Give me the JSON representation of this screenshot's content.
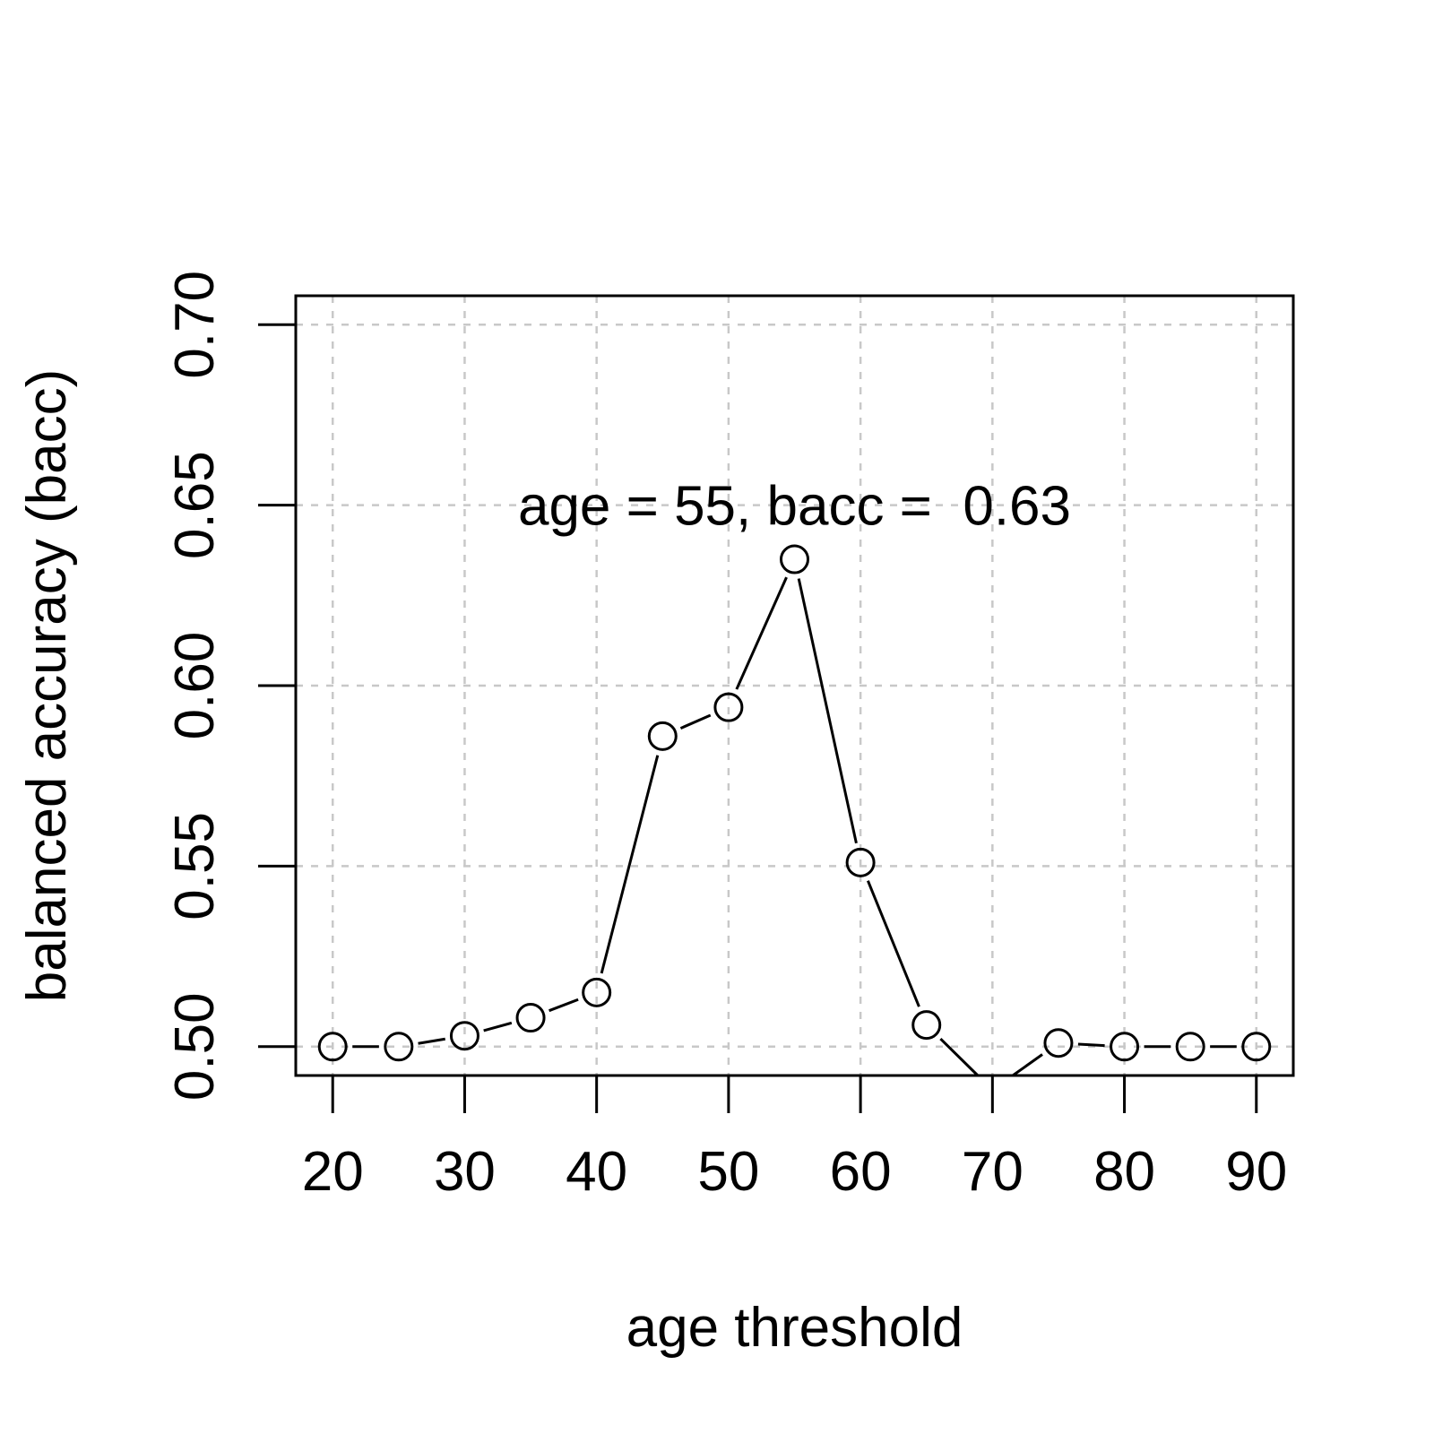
{
  "chart_data": {
    "type": "line",
    "title": "",
    "xlabel": "age threshold",
    "ylabel": "balanced accuracy (bacc)",
    "x": [
      20,
      25,
      30,
      35,
      40,
      45,
      50,
      55,
      60,
      65,
      70,
      75,
      80,
      85,
      90
    ],
    "series": [
      {
        "values": [
          0.5,
          0.5,
          0.503,
          0.508,
          0.515,
          0.586,
          0.594,
          0.635,
          0.551,
          0.506,
          0.488,
          0.501,
          0.5,
          0.5,
          0.5
        ]
      }
    ],
    "xlim": [
      17.2,
      92.8
    ],
    "ylim": [
      0.492,
      0.708
    ],
    "xticks": [
      20,
      30,
      40,
      50,
      60,
      70,
      80,
      90
    ],
    "xtick_labels": [
      "20",
      "30",
      "40",
      "50",
      "60",
      "70",
      "80",
      "90"
    ],
    "yticks": [
      0.5,
      0.55,
      0.6,
      0.65,
      0.7
    ],
    "ytick_labels": [
      "0.50",
      "0.55",
      "0.60",
      "0.65",
      "0.70"
    ],
    "grid": true,
    "grid_color": "#c8c8c8",
    "line_color": "#000000",
    "marker": "open-circle",
    "annotation": {
      "text": "age = 55, bacc =  0.63",
      "x": 55,
      "y": 0.65
    }
  }
}
